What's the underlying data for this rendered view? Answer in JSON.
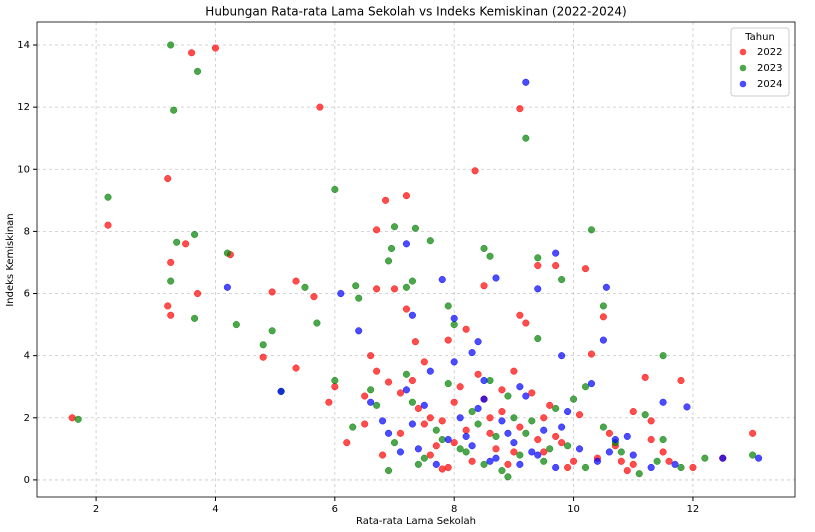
{
  "chart_data": {
    "type": "scatter",
    "title": "Hubungan Rata-rata Lama Sekolah vs Indeks Kemiskinan (2022-2024)",
    "x_label": "Rata-rata Lama Sekolah",
    "y_label": "Indeks Kemiskinan",
    "legend_title": "Tahun",
    "legend_position": "upper right",
    "grid": true,
    "xlim": [
      1.01,
      13.71
    ],
    "ylim": [
      -0.55,
      14.74
    ],
    "xticks": [
      2,
      4,
      6,
      8,
      10,
      12
    ],
    "yticks": [
      0,
      2,
      4,
      6,
      8,
      10,
      12,
      14
    ],
    "series": [
      {
        "name": "2022",
        "color": "#ff0000",
        "x": [
          1.6,
          2.2,
          3.2,
          3.25,
          3.2,
          3.25,
          3.6,
          4.0,
          3.7,
          3.5,
          4.25,
          4.8,
          4.95,
          5.35,
          5.35,
          5.65,
          5.75,
          5.9,
          6.0,
          6.2,
          6.5,
          6.6,
          6.7,
          6.7,
          6.7,
          6.85,
          6.9,
          7.0,
          7.1,
          7.2,
          7.2,
          7.35,
          7.5,
          7.6,
          7.7,
          7.8,
          7.9,
          8.0,
          8.2,
          8.35,
          8.5,
          8.6,
          8.8,
          9.0,
          9.1,
          9.1,
          9.2,
          9.4,
          9.5,
          9.7,
          9.8,
          10.2,
          10.3,
          10.5,
          10.6,
          10.8,
          11.0,
          11.2,
          11.3,
          11.5,
          11.8,
          12.0,
          12.5,
          13.0,
          7.1,
          7.4,
          7.6,
          7.8,
          8.0,
          8.1,
          8.3,
          8.5,
          8.7,
          8.9,
          9.1,
          9.3,
          9.5,
          9.7,
          9.9,
          10.1,
          10.4,
          10.7,
          11.0,
          11.3,
          7.3,
          7.9,
          8.2,
          8.6,
          9.0,
          9.4,
          6.8,
          7.5,
          8.4,
          8.8,
          9.6,
          10.0,
          10.9,
          11.6,
          6.5
        ],
        "values": [
          2.0,
          8.2,
          9.7,
          7.0,
          5.6,
          5.3,
          13.75,
          13.9,
          6.0,
          7.6,
          7.25,
          3.95,
          6.05,
          6.4,
          3.6,
          5.9,
          12.0,
          2.5,
          3.0,
          1.2,
          1.8,
          4.0,
          3.5,
          6.15,
          8.05,
          9.0,
          3.15,
          6.15,
          2.8,
          9.15,
          5.5,
          4.45,
          3.8,
          2.0,
          1.1,
          0.35,
          4.5,
          2.5,
          4.85,
          9.95,
          6.25,
          1.5,
          2.2,
          3.5,
          11.95,
          5.3,
          5.05,
          6.9,
          2.0,
          6.9,
          1.2,
          6.8,
          4.05,
          5.25,
          1.5,
          0.6,
          2.2,
          3.3,
          1.9,
          0.9,
          3.2,
          0.4,
          0.7,
          1.5,
          1.5,
          2.3,
          0.8,
          1.9,
          1.2,
          3.0,
          0.6,
          2.6,
          1.0,
          0.5,
          1.7,
          2.8,
          0.9,
          1.4,
          0.4,
          2.1,
          0.7,
          1.1,
          0.5,
          1.3,
          3.2,
          0.4,
          1.6,
          2.0,
          0.9,
          1.3,
          0.8,
          1.8,
          3.4,
          2.9,
          2.4,
          0.6,
          0.3,
          0.6,
          2.7
        ]
      },
      {
        "name": "2023",
        "color": "#008000",
        "x": [
          1.7,
          2.2,
          3.25,
          3.3,
          3.35,
          3.25,
          3.65,
          3.7,
          3.65,
          4.2,
          4.35,
          4.8,
          4.95,
          5.1,
          5.5,
          5.7,
          6.0,
          6.0,
          6.35,
          6.4,
          6.6,
          6.9,
          6.95,
          7.0,
          7.2,
          7.3,
          7.35,
          7.6,
          7.9,
          8.0,
          8.5,
          8.6,
          9.2,
          9.4,
          9.4,
          9.8,
          10.3,
          10.5,
          10.2,
          11.2,
          11.5,
          11.5,
          12.2,
          13.0,
          6.9,
          8.9,
          7.0,
          7.3,
          7.5,
          7.7,
          7.9,
          8.1,
          8.3,
          8.5,
          8.7,
          8.9,
          9.1,
          9.3,
          9.5,
          9.7,
          9.9,
          10.2,
          10.5,
          10.8,
          11.1,
          11.4,
          7.2,
          7.8,
          8.2,
          8.6,
          9.0,
          9.2,
          6.7,
          7.4,
          8.4,
          8.8,
          9.6,
          10.0,
          10.7,
          11.8,
          6.3
        ],
        "values": [
          1.95,
          9.1,
          14.0,
          11.9,
          7.65,
          6.4,
          7.9,
          13.15,
          5.2,
          7.3,
          5.0,
          4.35,
          4.8,
          2.85,
          6.2,
          5.05,
          9.35,
          3.2,
          6.25,
          5.85,
          2.9,
          7.05,
          7.45,
          8.15,
          6.2,
          6.4,
          8.1,
          7.7,
          5.6,
          5.0,
          7.45,
          7.2,
          11.0,
          7.15,
          4.55,
          6.45,
          8.05,
          5.6,
          3.0,
          2.1,
          1.3,
          4.0,
          0.7,
          0.8,
          0.3,
          0.1,
          1.2,
          2.5,
          0.7,
          1.6,
          3.1,
          1.0,
          2.2,
          0.5,
          1.4,
          2.7,
          0.8,
          1.9,
          0.6,
          2.3,
          1.1,
          0.4,
          1.7,
          0.9,
          0.2,
          0.6,
          3.4,
          1.3,
          0.9,
          3.2,
          2.0,
          1.5,
          2.4,
          0.5,
          1.8,
          0.3,
          1.0,
          2.6,
          1.2,
          0.4,
          1.7
        ]
      },
      {
        "name": "2024",
        "color": "#0000ff",
        "x": [
          4.2,
          5.1,
          6.1,
          6.4,
          7.2,
          7.3,
          7.8,
          8.0,
          8.4,
          8.7,
          9.2,
          9.4,
          9.7,
          10.55,
          10.5,
          9.8,
          10.3,
          11.5,
          11.9,
          13.1,
          12.5,
          6.8,
          7.1,
          7.3,
          7.5,
          7.7,
          7.9,
          8.1,
          8.3,
          8.5,
          8.7,
          8.9,
          9.1,
          9.3,
          9.5,
          9.7,
          9.9,
          10.1,
          10.4,
          10.7,
          11.0,
          11.3,
          7.2,
          7.6,
          8.0,
          8.2,
          8.4,
          8.6,
          8.8,
          9.0,
          9.2,
          9.4,
          6.9,
          7.4,
          8.5,
          9.1,
          9.8,
          10.6,
          10.9,
          11.7,
          6.6,
          8.3
        ],
        "values": [
          6.2,
          2.85,
          6.0,
          4.8,
          7.6,
          5.3,
          6.45,
          5.2,
          4.45,
          6.5,
          12.8,
          6.15,
          7.3,
          6.2,
          4.5,
          4.0,
          3.1,
          2.5,
          2.35,
          0.7,
          0.7,
          1.9,
          0.9,
          1.8,
          2.4,
          0.5,
          1.3,
          2.0,
          1.1,
          2.6,
          0.7,
          1.5,
          3.0,
          0.9,
          1.6,
          0.4,
          2.2,
          1.0,
          0.6,
          1.3,
          0.8,
          0.4,
          2.9,
          3.5,
          3.8,
          1.4,
          2.3,
          0.6,
          1.9,
          1.2,
          2.7,
          0.8,
          1.5,
          1.0,
          3.2,
          0.5,
          1.7,
          0.9,
          1.4,
          0.5,
          2.5,
          4.1
        ]
      }
    ]
  }
}
